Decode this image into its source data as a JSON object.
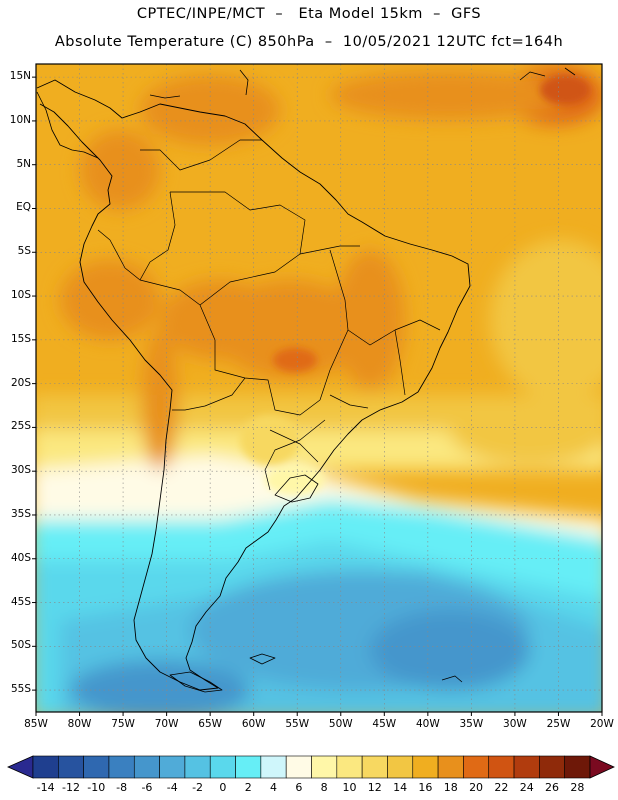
{
  "title": {
    "line1": "CPTEC/INPE/MCT  –   Eta Model 15km  –  GFS",
    "line2": "Absolute Temperature (C) 850hPa  –  10/05/2021 12UTC fct=164h"
  },
  "map": {
    "lon_range": [
      -85,
      -20
    ],
    "lat_range": [
      -57.5,
      16.5
    ],
    "lat_labels": [
      "15N",
      "10N",
      "5N",
      "EQ",
      "5S",
      "10S",
      "15S",
      "20S",
      "25S",
      "30S",
      "35S",
      "40S",
      "45S",
      "50S",
      "55S"
    ],
    "lat_values": [
      15,
      10,
      5,
      0,
      -5,
      -10,
      -15,
      -20,
      -25,
      -30,
      -35,
      -40,
      -45,
      -50,
      -55
    ],
    "lon_labels": [
      "85W",
      "80W",
      "75W",
      "70W",
      "65W",
      "60W",
      "55W",
      "50W",
      "45W",
      "40W",
      "35W",
      "30W",
      "25W",
      "20W"
    ],
    "lon_values": [
      -85,
      -80,
      -75,
      -70,
      -65,
      -60,
      -55,
      -50,
      -45,
      -40,
      -35,
      -30,
      -25,
      -20
    ],
    "gridlines": "dotted"
  },
  "colorbar": {
    "labels": [
      "-14",
      "-12",
      "-10",
      "-8",
      "-6",
      "-4",
      "-2",
      "0",
      "2",
      "4",
      "6",
      "8",
      "10",
      "12",
      "14",
      "16",
      "18",
      "20",
      "22",
      "24",
      "26",
      "28"
    ],
    "colors": [
      "#1f3f8f",
      "#27539f",
      "#2f68b0",
      "#3a80c0",
      "#4596cc",
      "#50abd8",
      "#55c2e3",
      "#5ad8ec",
      "#66eef6",
      "#cff6fb",
      "#fffbe6",
      "#fff7a8",
      "#fbe880",
      "#f7d861",
      "#f2c643",
      "#f0ae20",
      "#e8901c",
      "#e06a15",
      "#d05412",
      "#b13c0e",
      "#8f2a0a",
      "#6e1808"
    ],
    "under_color": "#2a2a90",
    "over_color": "#7a0a20"
  }
}
